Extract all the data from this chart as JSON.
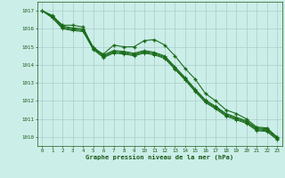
{
  "x": [
    0,
    1,
    2,
    3,
    4,
    5,
    6,
    7,
    8,
    9,
    10,
    11,
    12,
    13,
    14,
    15,
    16,
    17,
    18,
    19,
    20,
    21,
    22,
    23
  ],
  "series_zigzag": [
    1017.0,
    1016.7,
    1016.2,
    1016.2,
    1016.1,
    1014.9,
    1014.6,
    1015.1,
    1015.0,
    1015.0,
    1015.35,
    1015.4,
    1015.1,
    1014.5,
    1013.8,
    1013.2,
    1012.4,
    1012.0,
    1011.5,
    1011.3,
    1011.0,
    1010.55,
    1010.5,
    1010.0
  ],
  "series_a": [
    1017.0,
    1016.75,
    1016.15,
    1016.05,
    1016.0,
    1015.0,
    1014.55,
    1014.8,
    1014.75,
    1014.65,
    1014.8,
    1014.7,
    1014.5,
    1013.9,
    1013.3,
    1012.65,
    1012.05,
    1011.7,
    1011.3,
    1011.1,
    1010.9,
    1010.5,
    1010.45,
    1010.0
  ],
  "series_b": [
    1017.0,
    1016.7,
    1016.1,
    1016.0,
    1015.95,
    1014.95,
    1014.5,
    1014.75,
    1014.7,
    1014.6,
    1014.75,
    1014.65,
    1014.45,
    1013.85,
    1013.25,
    1012.6,
    1012.0,
    1011.65,
    1011.25,
    1011.05,
    1010.85,
    1010.45,
    1010.4,
    1009.95
  ],
  "series_c": [
    1017.0,
    1016.65,
    1016.05,
    1015.95,
    1015.9,
    1014.9,
    1014.45,
    1014.7,
    1014.65,
    1014.55,
    1014.7,
    1014.6,
    1014.4,
    1013.8,
    1013.2,
    1012.55,
    1011.95,
    1011.6,
    1011.2,
    1011.0,
    1010.8,
    1010.4,
    1010.35,
    1009.9
  ],
  "series_d": [
    1017.0,
    1016.6,
    1016.0,
    1015.9,
    1015.85,
    1014.85,
    1014.4,
    1014.65,
    1014.6,
    1014.5,
    1014.65,
    1014.55,
    1014.35,
    1013.75,
    1013.15,
    1012.5,
    1011.9,
    1011.55,
    1011.15,
    1010.95,
    1010.75,
    1010.35,
    1010.3,
    1009.85
  ],
  "line_color": "#1a6b1a",
  "bg_color": "#cceee8",
  "grid_color_major": "#aacccc",
  "grid_color_minor": "#c8e8e4",
  "xlabel": "Graphe pression niveau de la mer (hPa)",
  "xlabel_color": "#1a5b1a",
  "tick_color": "#1a5b1a",
  "ylim": [
    1009.5,
    1017.5
  ],
  "yticks": [
    1010,
    1011,
    1012,
    1013,
    1014,
    1015,
    1016,
    1017
  ],
  "xticks": [
    0,
    1,
    2,
    3,
    4,
    5,
    6,
    7,
    8,
    9,
    10,
    11,
    12,
    13,
    14,
    15,
    16,
    17,
    18,
    19,
    20,
    21,
    22,
    23
  ]
}
